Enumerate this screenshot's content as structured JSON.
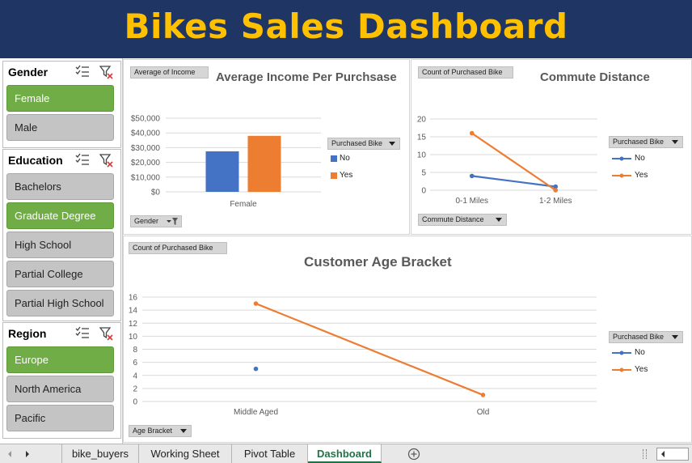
{
  "dashboard": {
    "title": "Bikes Sales Dashboard"
  },
  "slicers": {
    "gender": {
      "title": "Gender",
      "items": [
        "Female",
        "Male"
      ],
      "selected": [
        "Female"
      ]
    },
    "education": {
      "title": "Education",
      "items": [
        "Bachelors",
        "Graduate Degree",
        "High School",
        "Partial College",
        "Partial High School"
      ],
      "selected": [
        "Graduate Degree"
      ]
    },
    "region": {
      "title": "Region",
      "items": [
        "Europe",
        "North America",
        "Pacific"
      ],
      "selected": [
        "Europe"
      ]
    }
  },
  "fields": {
    "income_value": "Average of Income",
    "income_axis": "Gender",
    "income_legend": "Purchased Bike",
    "commute_value": "Count of Purchased Bike",
    "commute_axis": "Commute Distance",
    "commute_legend": "Purchased Bike",
    "age_value": "Count of Purchased Bike",
    "age_axis": "Age Bracket",
    "age_legend": "Purchased Bike"
  },
  "colors": {
    "no": "#4472c4",
    "yes": "#ed7d31",
    "banner": "#1f3564",
    "title": "#ffc000",
    "selected": "#70ad47"
  },
  "chart_data": [
    {
      "type": "bar",
      "title": "Average Income Per Purchsase",
      "categories": [
        "Female"
      ],
      "series": [
        {
          "name": "No",
          "values": [
            27500
          ]
        },
        {
          "name": "Yes",
          "values": [
            38000
          ]
        }
      ],
      "ylim": [
        0,
        50000
      ],
      "yticks": [
        "$0",
        "$10,000",
        "$20,000",
        "$30,000",
        "$40,000",
        "$50,000"
      ],
      "legend": "right"
    },
    {
      "type": "line",
      "title": "Commute Distance",
      "categories": [
        "0-1 Miles",
        "1-2 Miles"
      ],
      "series": [
        {
          "name": "No",
          "values": [
            4,
            1
          ]
        },
        {
          "name": "Yes",
          "values": [
            16,
            0
          ]
        }
      ],
      "ylim": [
        0,
        20
      ],
      "yticks": [
        "0",
        "5",
        "10",
        "15",
        "20"
      ],
      "legend": "right"
    },
    {
      "type": "line",
      "title": "Customer Age Bracket",
      "categories": [
        "Middle Aged",
        "Old"
      ],
      "series": [
        {
          "name": "No",
          "values": [
            5,
            null
          ]
        },
        {
          "name": "Yes",
          "values": [
            15,
            1
          ]
        }
      ],
      "ylim": [
        0,
        16
      ],
      "yticks": [
        "0",
        "2",
        "4",
        "6",
        "8",
        "10",
        "12",
        "14",
        "16"
      ],
      "legend": "right"
    }
  ],
  "sheet_tabs": {
    "items": [
      "bike_buyers",
      "Working Sheet",
      "Pivot Table",
      "Dashboard"
    ],
    "active": "Dashboard"
  }
}
